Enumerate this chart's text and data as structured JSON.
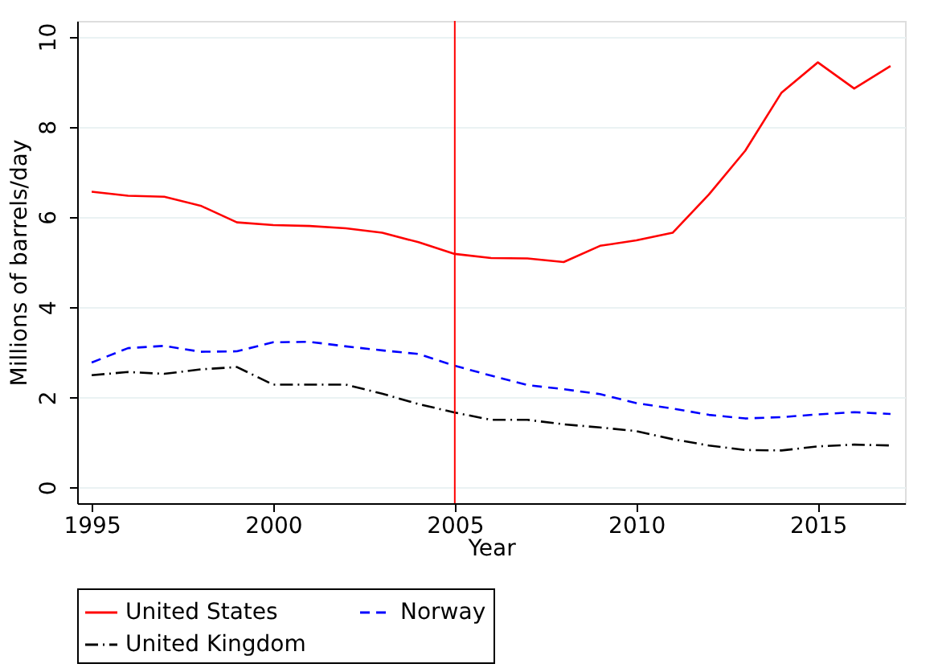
{
  "chart_data": {
    "type": "line",
    "xlabel": "Year",
    "ylabel": "Millions of barrels/day",
    "x": [
      1995,
      1996,
      1997,
      1998,
      1999,
      2000,
      2001,
      2002,
      2003,
      2004,
      2005,
      2006,
      2007,
      2008,
      2009,
      2010,
      2011,
      2012,
      2013,
      2014,
      2015,
      2016,
      2017
    ],
    "series": [
      {
        "name": "United States",
        "color": "#ff0000",
        "line_style": "solid",
        "values": [
          6.56,
          6.47,
          6.45,
          6.25,
          5.88,
          5.82,
          5.8,
          5.75,
          5.65,
          5.44,
          5.18,
          5.09,
          5.08,
          5.0,
          5.36,
          5.48,
          5.65,
          6.5,
          7.47,
          8.76,
          9.43,
          8.85,
          9.35
        ]
      },
      {
        "name": "Norway",
        "color": "#0000ff",
        "line_style": "dashed",
        "values": [
          2.77,
          3.09,
          3.14,
          3.01,
          3.02,
          3.22,
          3.23,
          3.13,
          3.04,
          2.96,
          2.7,
          2.48,
          2.27,
          2.18,
          2.07,
          1.87,
          1.75,
          1.61,
          1.53,
          1.56,
          1.62,
          1.67,
          1.63
        ]
      },
      {
        "name": "United Kingdom",
        "color": "#000000",
        "line_style": "dashdot",
        "values": [
          2.49,
          2.56,
          2.52,
          2.62,
          2.67,
          2.28,
          2.28,
          2.28,
          2.08,
          1.85,
          1.66,
          1.5,
          1.5,
          1.4,
          1.33,
          1.25,
          1.07,
          0.93,
          0.83,
          0.82,
          0.91,
          0.95,
          0.93
        ]
      }
    ],
    "xlim": [
      1994.6,
      2017.4
    ],
    "xticks": [
      1995,
      2000,
      2005,
      2010,
      2015
    ],
    "ylim": [
      -0.35,
      10.35
    ],
    "yticks": [
      0,
      2,
      4,
      6,
      8,
      10
    ],
    "ref_lines": [
      {
        "axis": "x",
        "value": 2005,
        "color": "#ff0000"
      }
    ],
    "grid": "y",
    "legend": "bottom",
    "marker": "none"
  }
}
